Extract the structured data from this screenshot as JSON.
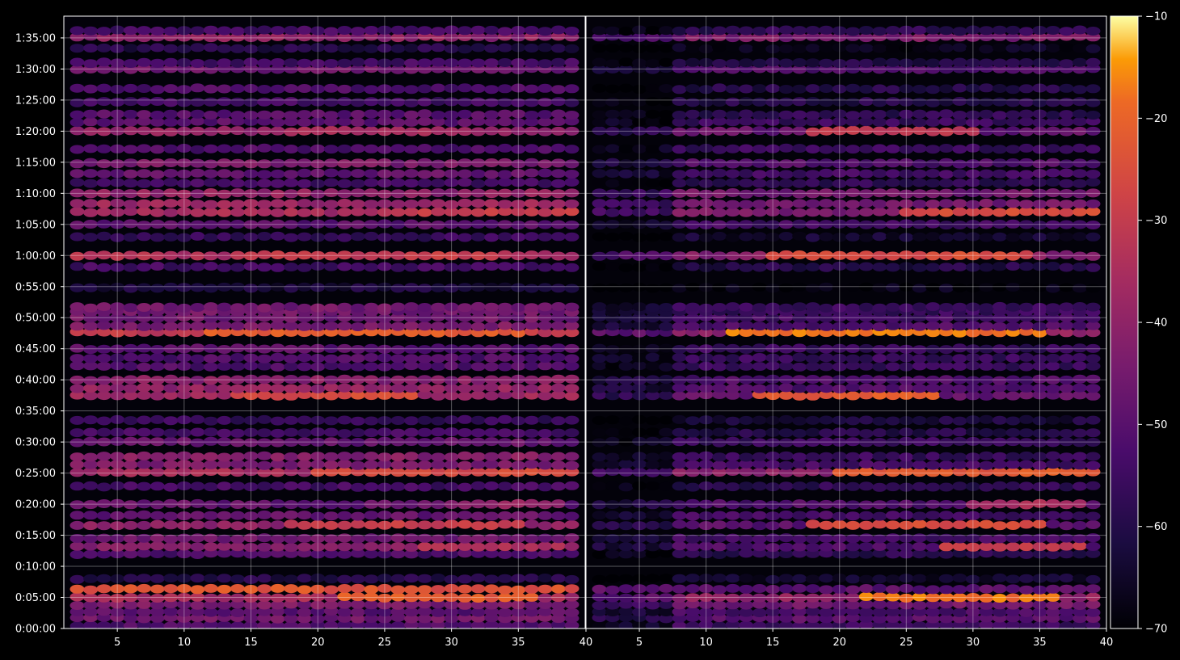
{
  "chart_data": {
    "type": "heatmap",
    "title": "",
    "panels": [
      {
        "name": "",
        "xlim": [
          1,
          40
        ],
        "x_ticks": [
          5,
          10,
          15,
          20,
          25,
          30,
          35
        ],
        "x_tick_labels": [
          "5",
          "10",
          "15",
          "20",
          "25",
          "30",
          "35"
        ]
      },
      {
        "name": "",
        "xlim": [
          1,
          40
        ],
        "x_ticks": [
          5,
          10,
          15,
          20,
          25,
          30,
          35,
          40
        ],
        "x_tick_labels": [
          "5",
          "10",
          "15",
          "20",
          "25",
          "30",
          "35",
          "40"
        ],
        "shared_left_label": "40"
      }
    ],
    "y_axis": {
      "ylim_seconds": [
        0,
        5910
      ],
      "ticks_seconds": [
        0,
        300,
        600,
        900,
        1200,
        1500,
        1800,
        2100,
        2400,
        2700,
        3000,
        3300,
        3600,
        3900,
        4200,
        4500,
        4800,
        5100,
        5400,
        5700
      ],
      "tick_labels": [
        "0:00:00",
        "0:05:00",
        "0:10:00",
        "0:15:00",
        "0:20:00",
        "0:25:00",
        "0:30:00",
        "0:35:00",
        "0:40:00",
        "0:45:00",
        "0:50:00",
        "0:55:00",
        "1:00:00",
        "1:05:00",
        "1:10:00",
        "1:15:00",
        "1:20:00",
        "1:25:00",
        "1:30:00",
        "1:35:00"
      ]
    },
    "colorbar": {
      "colormap": "inferno",
      "vmin": -70,
      "vmax": -10,
      "ticks": [
        -70,
        -60,
        -50,
        -40,
        -30,
        -20,
        -10
      ],
      "tick_labels": [
        "−70",
        "−60",
        "−50",
        "−40",
        "−30",
        "−20",
        "−10"
      ]
    },
    "grid": true,
    "bands": [
      {
        "t": 30,
        "level": -52,
        "right_level": -55
      },
      {
        "t": 100,
        "level": -46,
        "right_level": -50
      },
      {
        "t": 160,
        "level": -50,
        "right_level": -53
      },
      {
        "t": 230,
        "level": -44,
        "right_level": -46
      },
      {
        "t": 300,
        "level": -36,
        "right_level": -40,
        "peak_range": [
          22,
          36
        ],
        "peak_level": -22
      },
      {
        "t": 380,
        "level": -24,
        "right_level": -50,
        "right_start": 1
      },
      {
        "t": 480,
        "level": -60,
        "right_level": -64
      },
      {
        "t": 720,
        "level": -52,
        "right_level": -58
      },
      {
        "t": 790,
        "level": -42,
        "right_level": -52,
        "peak_range": [
          28,
          38
        ],
        "peak_level": -34
      },
      {
        "t": 870,
        "level": -46,
        "right_level": -54
      },
      {
        "t": 1000,
        "level": -40,
        "right_level": -50,
        "peak_range": [
          18,
          35
        ],
        "peak_level": -30
      },
      {
        "t": 1090,
        "level": -48,
        "right_level": -54
      },
      {
        "t": 1200,
        "level": -48,
        "right_level": -52,
        "peak_range": [
          30,
          38
        ],
        "peak_level": -40
      },
      {
        "t": 1370,
        "level": -54,
        "right_level": -58
      },
      {
        "t": 1510,
        "level": -36,
        "right_level": -42,
        "peak_range": [
          20,
          39
        ],
        "peak_level": -26
      },
      {
        "t": 1580,
        "level": -44,
        "right_level": -54
      },
      {
        "t": 1660,
        "level": -42,
        "right_level": -56
      },
      {
        "t": 1800,
        "level": -48,
        "right_level": -56
      },
      {
        "t": 1890,
        "level": -54,
        "right_level": -60
      },
      {
        "t": 2010,
        "level": -56,
        "right_level": -62
      },
      {
        "t": 2250,
        "level": -38,
        "right_level": -48,
        "peak_range": [
          14,
          27
        ],
        "peak_level": -26
      },
      {
        "t": 2320,
        "level": -40,
        "right_level": -52
      },
      {
        "t": 2400,
        "level": -42,
        "right_level": -52
      },
      {
        "t": 2530,
        "level": -52,
        "right_level": -56
      },
      {
        "t": 2610,
        "level": -52,
        "right_level": -56
      },
      {
        "t": 2700,
        "level": -50,
        "right_level": -56
      },
      {
        "t": 2860,
        "level": -30,
        "right_level": -40,
        "peak_range": [
          12,
          35
        ],
        "peak_level": -22
      },
      {
        "t": 2920,
        "level": -44,
        "right_level": -52
      },
      {
        "t": 3000,
        "level": -46,
        "right_level": -54
      },
      {
        "t": 3060,
        "level": -46,
        "right_level": -56
      },
      {
        "t": 3100,
        "level": -46,
        "right_level": -56
      },
      {
        "t": 3290,
        "level": -62,
        "right_level": -68
      },
      {
        "t": 3490,
        "level": -54,
        "right_level": -60
      },
      {
        "t": 3600,
        "level": -34,
        "right_level": -42,
        "peak_range": [
          15,
          34
        ],
        "peak_level": -30
      },
      {
        "t": 3780,
        "level": -56,
        "right_level": -64
      },
      {
        "t": 3900,
        "level": -50,
        "right_level": -54
      },
      {
        "t": 4020,
        "level": -36,
        "right_level": -44,
        "peak_range": [
          25,
          39
        ],
        "peak_level": -30
      },
      {
        "t": 4100,
        "level": -38,
        "right_level": -46
      },
      {
        "t": 4200,
        "level": -40,
        "right_level": -46
      },
      {
        "t": 4300,
        "level": -54,
        "right_level": -58
      },
      {
        "t": 4390,
        "level": -48,
        "right_level": -54
      },
      {
        "t": 4490,
        "level": -44,
        "right_level": -52
      },
      {
        "t": 4630,
        "level": -52,
        "right_level": -56
      },
      {
        "t": 4800,
        "level": -40,
        "right_level": -48,
        "peak_range": [
          18,
          30
        ],
        "peak_level": -36
      },
      {
        "t": 4890,
        "level": -50,
        "right_level": -56
      },
      {
        "t": 4960,
        "level": -50,
        "right_level": -58
      },
      {
        "t": 5080,
        "level": -54,
        "right_level": -60
      },
      {
        "t": 5210,
        "level": -52,
        "right_level": -60
      },
      {
        "t": 5400,
        "level": -46,
        "right_level": -52
      },
      {
        "t": 5460,
        "level": -54,
        "right_level": -60
      },
      {
        "t": 5600,
        "level": -60,
        "right_level": -66
      },
      {
        "t": 5710,
        "level": -40,
        "right_level": -44
      },
      {
        "t": 5770,
        "level": -54,
        "right_level": -58
      }
    ]
  }
}
